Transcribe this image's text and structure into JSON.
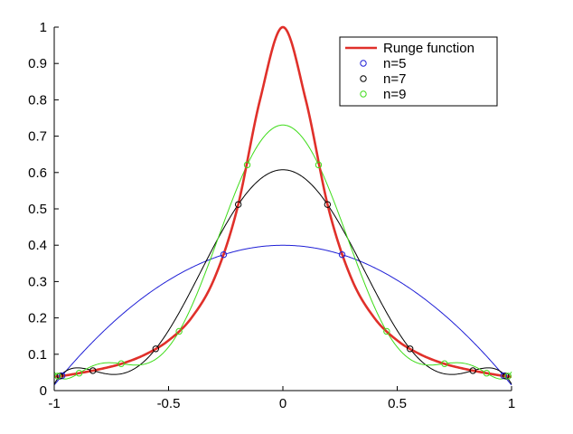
{
  "chart_data": {
    "type": "line",
    "title": "",
    "xlabel": "",
    "ylabel": "",
    "xlim": [
      -1,
      1
    ],
    "ylim": [
      0,
      1
    ],
    "xticks": [
      -1,
      -0.5,
      0,
      0.5,
      1
    ],
    "xtick_labels": [
      "-1",
      "-0.5",
      "0",
      "0.5",
      "1"
    ],
    "yticks": [
      0,
      0.1,
      0.2,
      0.3,
      0.4,
      0.5,
      0.6,
      0.7,
      0.8,
      0.9,
      1
    ],
    "ytick_labels": [
      "0",
      "0.1",
      "0.2",
      "0.3",
      "0.4",
      "0.5",
      "0.6",
      "0.7",
      "0.8",
      "0.9",
      "1"
    ],
    "grid": false,
    "legend_position": "top-right",
    "series": [
      {
        "name": "Runge function",
        "color": "#e0302a",
        "style": "line",
        "x": [
          -1,
          -0.9,
          -0.8,
          -0.7,
          -0.6,
          -0.5,
          -0.4,
          -0.3,
          -0.2,
          -0.1,
          0,
          0.1,
          0.2,
          0.3,
          0.4,
          0.5,
          0.6,
          0.7,
          0.8,
          0.9,
          1
        ],
        "y": [
          0.038,
          0.047,
          0.059,
          0.075,
          0.1,
          0.138,
          0.2,
          0.308,
          0.5,
          0.8,
          1.0,
          0.8,
          0.5,
          0.308,
          0.2,
          0.138,
          0.1,
          0.075,
          0.059,
          0.047,
          0.038
        ]
      },
      {
        "name": "n=5",
        "color": "#1f1fd6",
        "style": "markers+curve",
        "x": [
          -0.966,
          -0.259,
          0.259,
          0.966
        ],
        "y": [
          0.041,
          0.374,
          0.374,
          0.041
        ]
      },
      {
        "name": "n=7",
        "color": "#000000",
        "style": "markers+curve",
        "x": [
          -0.975,
          -0.831,
          -0.556,
          -0.195,
          0.195,
          0.556,
          0.831,
          0.975
        ],
        "y": [
          0.04,
          0.055,
          0.115,
          0.512,
          0.512,
          0.115,
          0.055,
          0.04
        ]
      },
      {
        "name": "n=9",
        "color": "#3fdc1a",
        "style": "markers+curve",
        "x": [
          -0.985,
          -0.891,
          -0.707,
          -0.454,
          -0.156,
          0.156,
          0.454,
          0.707,
          0.891,
          0.985
        ],
        "y": [
          0.04,
          0.048,
          0.074,
          0.163,
          0.621,
          0.621,
          0.163,
          0.074,
          0.048,
          0.04
        ]
      }
    ]
  }
}
